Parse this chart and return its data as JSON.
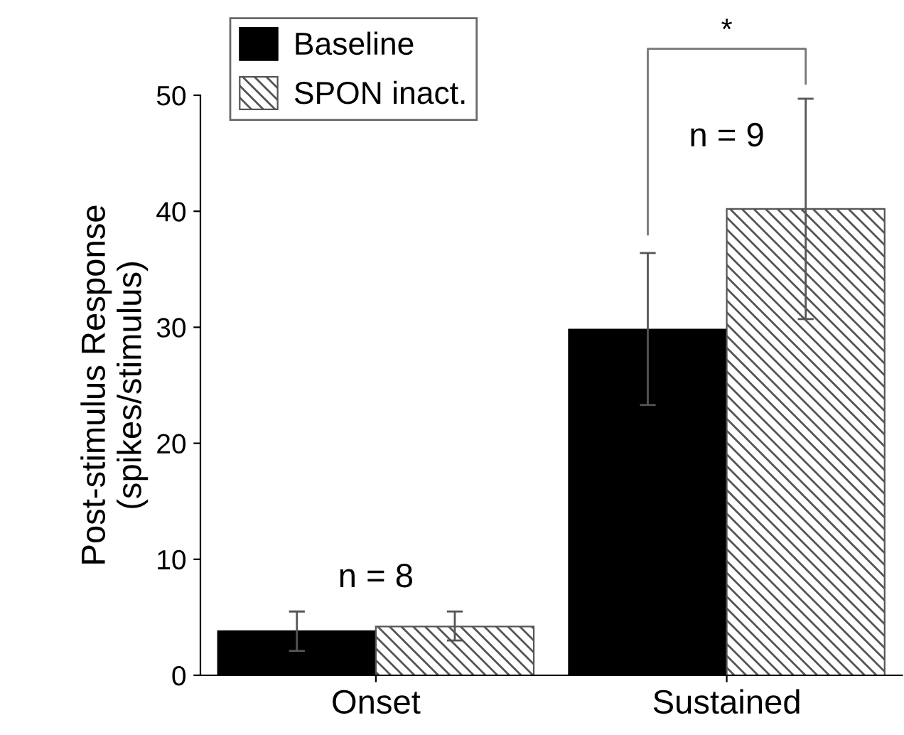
{
  "chart_data": {
    "type": "bar",
    "ylabel": "Post-stimulus Response\n(spikes/stimulus)",
    "categories": [
      "Onset",
      "Sustained"
    ],
    "series": [
      {
        "name": "Baseline",
        "color": "#000000",
        "values": [
          3.8,
          29.8
        ],
        "errors": [
          [
            2.1,
            5.5
          ],
          [
            23.3,
            36.4
          ]
        ]
      },
      {
        "name": "SPON inact.",
        "color": "#555555",
        "values": [
          4.2,
          40.2
        ],
        "errors": [
          [
            3.0,
            5.5
          ],
          [
            30.7,
            49.7
          ]
        ]
      }
    ],
    "ylim": [
      0,
      50
    ],
    "yticks": [
      0,
      10,
      20,
      30,
      40,
      50
    ],
    "grid": false,
    "legend": "top left",
    "annotations": [
      "n = 8",
      "n = 9",
      "*"
    ]
  }
}
